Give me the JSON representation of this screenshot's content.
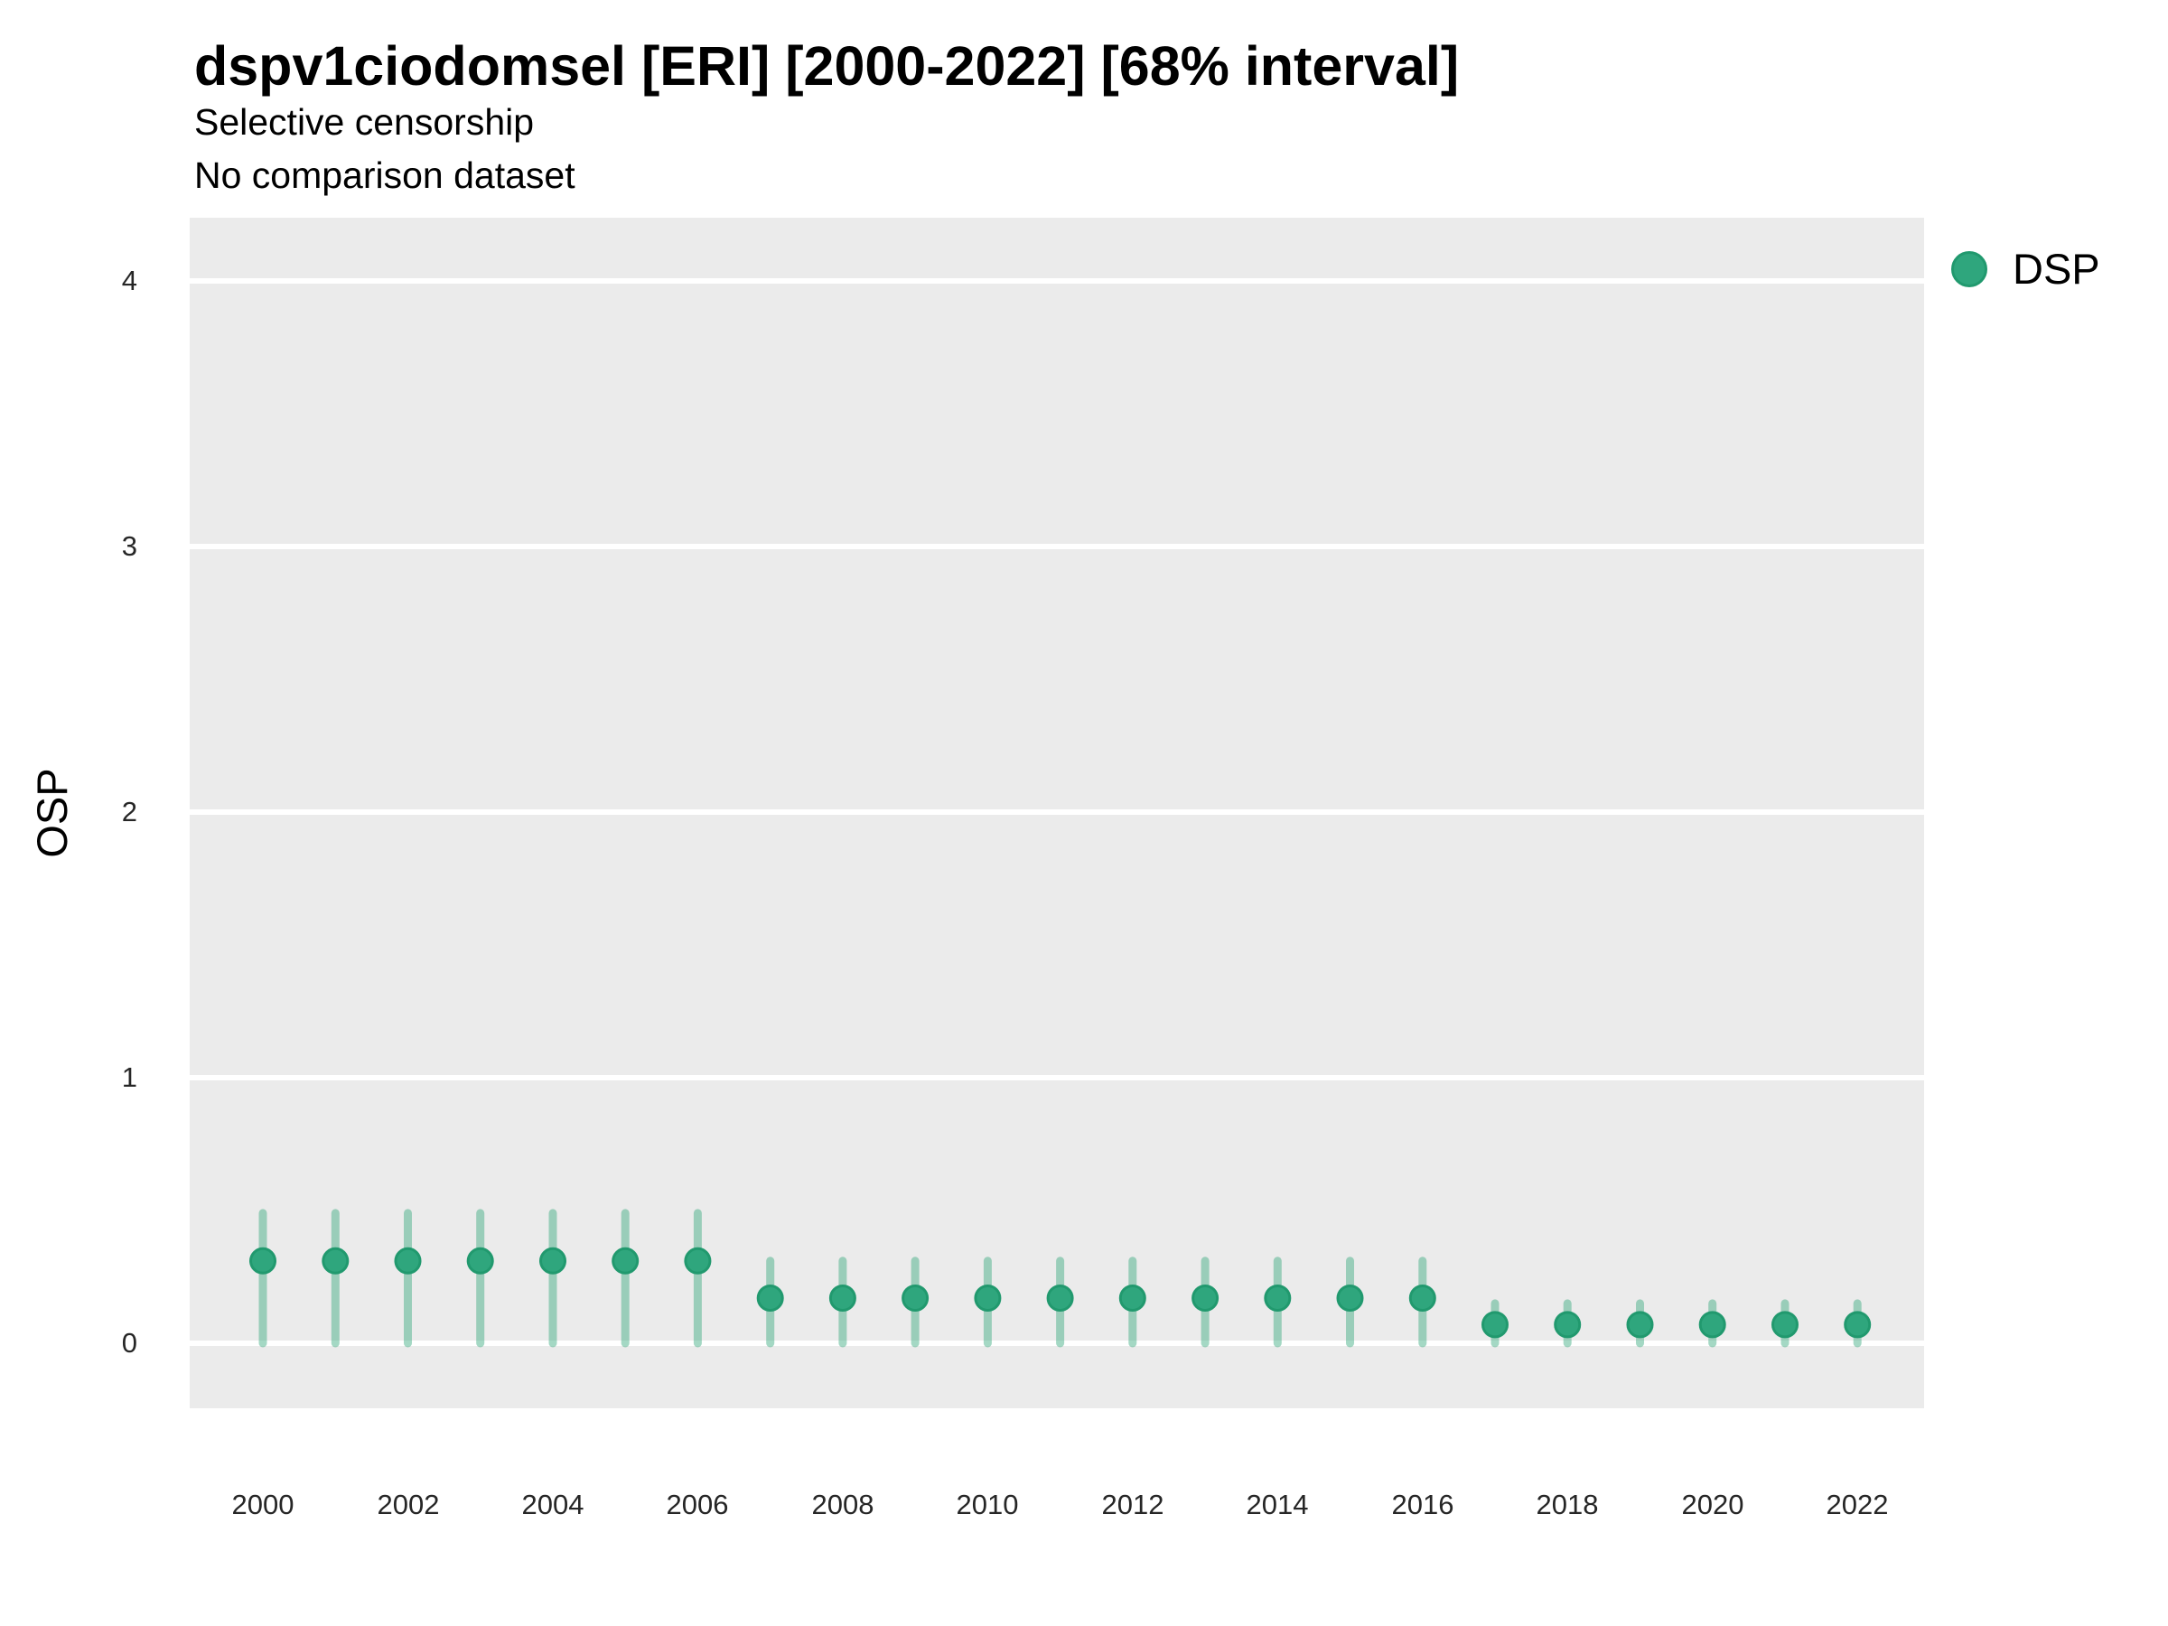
{
  "header": {
    "title": "dspv1ciodomsel [ERI] [2000-2022] [68% interval]",
    "subtitle": "Selective censorship",
    "note": "No comparison dataset"
  },
  "legend": {
    "items": [
      {
        "label": "DSP",
        "marker": "circle-icon",
        "color": "#2FA67D"
      }
    ]
  },
  "axes": {
    "y_title": "OSP",
    "y_ticks": [
      "0",
      "1",
      "2",
      "3",
      "4"
    ],
    "x_ticks": [
      "2000",
      "2002",
      "2004",
      "2006",
      "2008",
      "2010",
      "2012",
      "2014",
      "2016",
      "2018",
      "2020",
      "2022"
    ]
  },
  "colors": {
    "figure_bg": "#FFFFFF",
    "panel_bg": "#EBEBEB",
    "gridline": "#FFFFFF",
    "point_fill": "#2FA67D",
    "point_stroke": "#21996E",
    "interval_stroke": "#35A87C",
    "text": "#000000"
  },
  "chart_data": {
    "type": "pointrange",
    "title": "dspv1ciodomsel [ERI] [2000-2022] [68% interval]",
    "subtitle": "Selective censorship",
    "note": "No comparison dataset",
    "interval_label": "68% interval",
    "xlabel": "",
    "ylabel": "OSP",
    "xlim": [
      1998.99,
      2022.92
    ],
    "ylim": [
      -0.245,
      4.238
    ],
    "y_gridline_values": [
      0,
      1,
      2,
      3,
      4
    ],
    "x_tick_years": [
      2000,
      2002,
      2004,
      2006,
      2008,
      2010,
      2012,
      2014,
      2016,
      2018,
      2020,
      2022
    ],
    "grid": "horizontal-major-only",
    "legend_position": "right-top",
    "series": [
      {
        "name": "DSP",
        "points": [
          {
            "year": 2000,
            "value": 0.31,
            "lo": 0.0,
            "hi": 0.49
          },
          {
            "year": 2001,
            "value": 0.31,
            "lo": 0.0,
            "hi": 0.49
          },
          {
            "year": 2002,
            "value": 0.31,
            "lo": 0.0,
            "hi": 0.49
          },
          {
            "year": 2003,
            "value": 0.31,
            "lo": 0.0,
            "hi": 0.49
          },
          {
            "year": 2004,
            "value": 0.31,
            "lo": 0.0,
            "hi": 0.49
          },
          {
            "year": 2005,
            "value": 0.31,
            "lo": 0.0,
            "hi": 0.49
          },
          {
            "year": 2006,
            "value": 0.31,
            "lo": 0.0,
            "hi": 0.49
          },
          {
            "year": 2007,
            "value": 0.17,
            "lo": 0.0,
            "hi": 0.31
          },
          {
            "year": 2008,
            "value": 0.17,
            "lo": 0.0,
            "hi": 0.31
          },
          {
            "year": 2009,
            "value": 0.17,
            "lo": 0.0,
            "hi": 0.31
          },
          {
            "year": 2010,
            "value": 0.17,
            "lo": 0.0,
            "hi": 0.31
          },
          {
            "year": 2011,
            "value": 0.17,
            "lo": 0.0,
            "hi": 0.31
          },
          {
            "year": 2012,
            "value": 0.17,
            "lo": 0.0,
            "hi": 0.31
          },
          {
            "year": 2013,
            "value": 0.17,
            "lo": 0.0,
            "hi": 0.31
          },
          {
            "year": 2014,
            "value": 0.17,
            "lo": 0.0,
            "hi": 0.31
          },
          {
            "year": 2015,
            "value": 0.17,
            "lo": 0.0,
            "hi": 0.31
          },
          {
            "year": 2016,
            "value": 0.17,
            "lo": 0.0,
            "hi": 0.31
          },
          {
            "year": 2017,
            "value": 0.07,
            "lo": 0.0,
            "hi": 0.15
          },
          {
            "year": 2018,
            "value": 0.07,
            "lo": 0.0,
            "hi": 0.15
          },
          {
            "year": 2019,
            "value": 0.07,
            "lo": 0.0,
            "hi": 0.15
          },
          {
            "year": 2020,
            "value": 0.07,
            "lo": 0.0,
            "hi": 0.15
          },
          {
            "year": 2021,
            "value": 0.07,
            "lo": 0.0,
            "hi": 0.15
          },
          {
            "year": 2022,
            "value": 0.07,
            "lo": 0.0,
            "hi": 0.15
          }
        ]
      }
    ]
  }
}
